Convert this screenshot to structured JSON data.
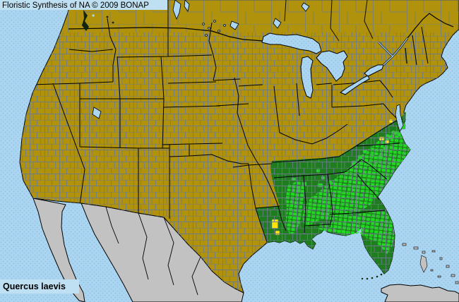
{
  "header": {
    "title": "Floristic Synthesis of NA © 2009 BONAP"
  },
  "footer": {
    "species_name": "Quercus laevis"
  },
  "map": {
    "colors": {
      "ocean": "#ABD5F1",
      "ocean_dot": "#8FC2E2",
      "label_bg": "#BEE0F2",
      "absent_land": "#B1920C",
      "state_present": "#1F7D1F",
      "county_present": "#21DB21",
      "county_rare": "#FFE30A",
      "outside_na": "#C2C2C2",
      "county_line": "#6B7A8E",
      "state_line": "#000000",
      "water_line": "#000000",
      "label_text": "#000000"
    },
    "rare_county_markers": [
      [
        385,
        311,
        9,
        13
      ],
      [
        390,
        327,
        6,
        6
      ],
      [
        537,
        194,
        7,
        5
      ],
      [
        545,
        199,
        6,
        4
      ],
      [
        551,
        169,
        5,
        5
      ]
    ],
    "present_county_markers": [
      [
        498,
        228,
        7,
        6
      ],
      [
        507,
        220,
        6,
        5
      ],
      [
        514,
        212,
        6,
        5
      ],
      [
        519,
        230,
        6,
        5
      ],
      [
        450,
        260,
        7,
        5
      ],
      [
        428,
        258,
        6,
        5
      ],
      [
        543,
        208,
        6,
        5
      ],
      [
        550,
        192,
        6,
        5
      ],
      [
        536,
        220,
        6,
        5
      ],
      [
        558,
        186,
        6,
        5
      ],
      [
        568,
        175,
        6,
        8
      ],
      [
        563,
        188,
        5,
        5
      ],
      [
        420,
        268,
        6,
        5
      ],
      [
        413,
        252,
        6,
        4
      ],
      [
        455,
        250,
        5,
        4
      ],
      [
        448,
        240,
        5,
        4
      ],
      [
        465,
        256,
        5,
        4
      ],
      [
        530,
        228,
        5,
        4
      ],
      [
        524,
        218,
        5,
        4
      ]
    ]
  }
}
